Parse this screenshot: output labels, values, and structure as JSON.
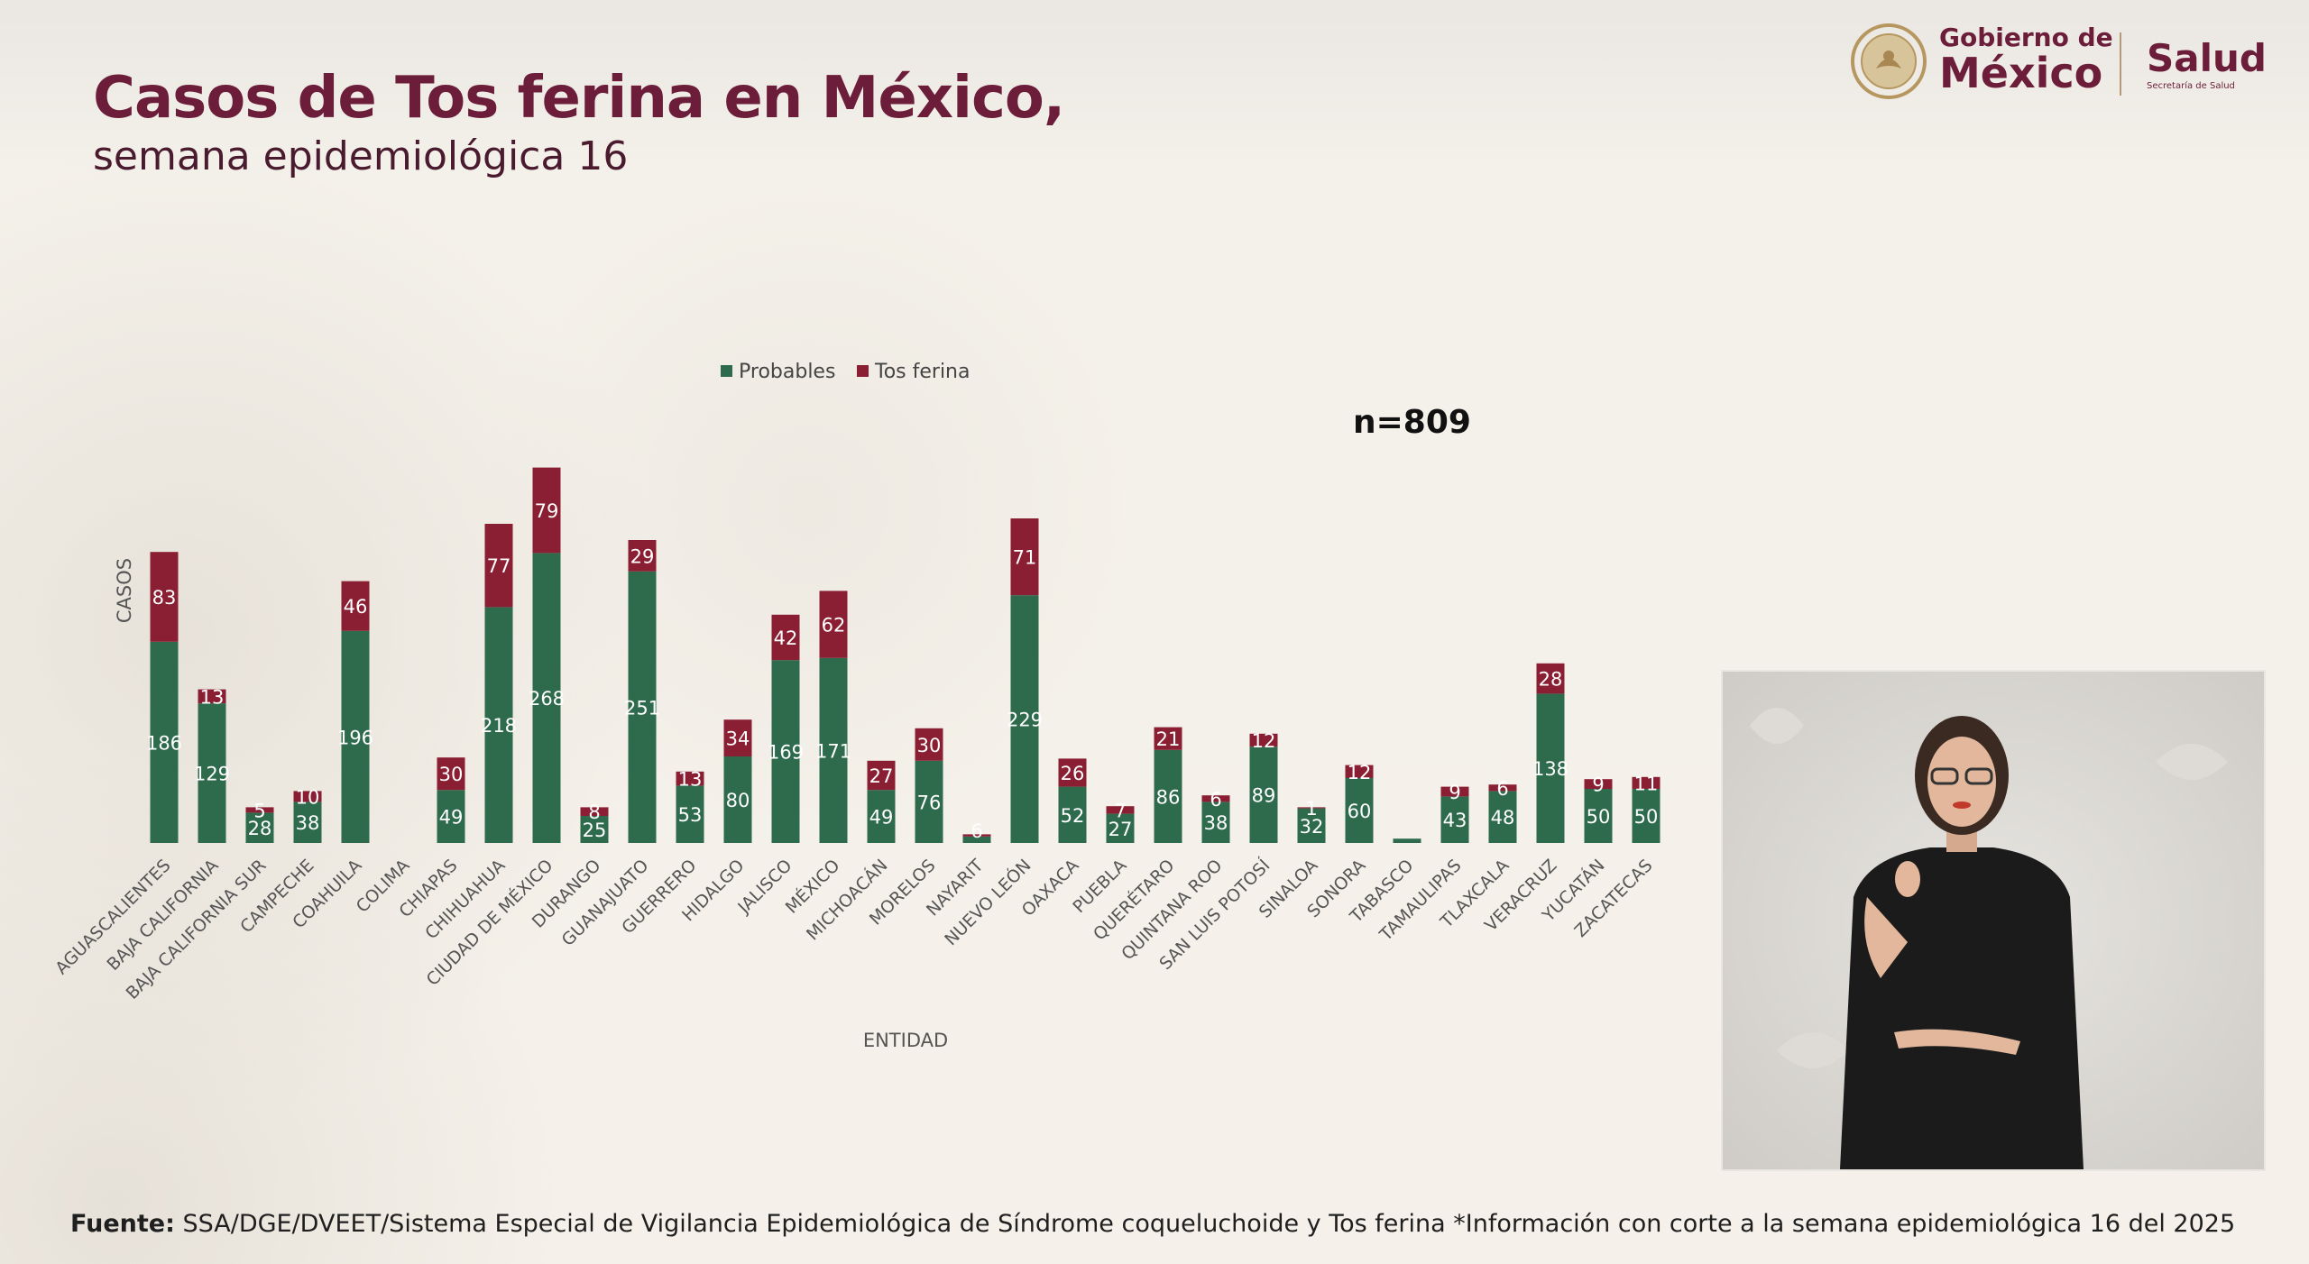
{
  "header": {
    "title": "Casos de Tos ferina en México,",
    "subtitle": "semana epidemiológica 16"
  },
  "logo": {
    "gobierno_line1": "Gobierno de",
    "gobierno_line2": "México",
    "salud": "Salud",
    "salud_sub": "Secretaría de Salud"
  },
  "footer": {
    "label": "Fuente:",
    "text": "SSA/DGE/DVEET/Sistema Especial de Vigilancia Epidemiológica de Síndrome coqueluchoide y Tos ferina *Información con corte a la semana epidemiológica 16 del 2025"
  },
  "chart_data": {
    "type": "bar",
    "stacked": true,
    "xlabel": "ENTIDAD",
    "ylabel": "CASOS",
    "annotation": "n=809",
    "legend_position": "top",
    "grid": false,
    "ylim": [
      0,
      350
    ],
    "categories": [
      "AGUASCALIENTES",
      "BAJA CALIFORNIA",
      "BAJA CALIFORNIA SUR",
      "CAMPECHE",
      "COAHUILA",
      "COLIMA",
      "CHIAPAS",
      "CHIHUAHUA",
      "CIUDAD DE MÉXICO",
      "DURANGO",
      "GUANAJUATO",
      "GUERRERO",
      "HIDALGO",
      "JALISCO",
      "MÉXICO",
      "MICHOACÁN",
      "MORELOS",
      "NAYARIT",
      "NUEVO LEÓN",
      "OAXACA",
      "PUEBLA",
      "QUERÉTARO",
      "QUINTANA ROO",
      "SAN LUIS POTOSÍ",
      "SINALOA",
      "SONORA",
      "TABASCO",
      "TAMAULIPAS",
      "TLAXCALA",
      "VERACRUZ",
      "YUCATÁN",
      "ZACATECAS"
    ],
    "series": [
      {
        "name": "Probables",
        "color": "#2e6b4c",
        "values": [
          186,
          129,
          28,
          38,
          196,
          0,
          49,
          218,
          268,
          25,
          251,
          53,
          80,
          169,
          171,
          49,
          76,
          6,
          229,
          52,
          27,
          86,
          38,
          89,
          32,
          60,
          4,
          43,
          48,
          138,
          50,
          50
        ],
        "labels": [
          "186",
          "129",
          "28",
          "38",
          "196",
          "",
          "49",
          "218",
          "268",
          "25",
          "251",
          "53",
          "80",
          "169",
          "171",
          "49",
          "76",
          "6",
          "229",
          "52",
          "27",
          "86",
          "38",
          "89",
          "32",
          "60",
          "",
          "43",
          "48",
          "138",
          "50",
          "50"
        ]
      },
      {
        "name": "Tos ferina",
        "color": "#8a1e32",
        "values": [
          83,
          13,
          5,
          10,
          46,
          0,
          30,
          77,
          79,
          8,
          29,
          13,
          34,
          42,
          62,
          27,
          30,
          2,
          71,
          26,
          7,
          21,
          6,
          12,
          1,
          12,
          0,
          9,
          6,
          28,
          9,
          11
        ],
        "labels": [
          "83",
          "13",
          "5",
          "10",
          "46",
          "",
          "30",
          "77",
          "79",
          "8",
          "29",
          "13",
          "34",
          "42",
          "62",
          "27",
          "30",
          "",
          "71",
          "26",
          "7",
          "21",
          "6",
          "12",
          "1",
          "12",
          "",
          "9",
          "6",
          "28",
          "9",
          "11"
        ]
      }
    ]
  }
}
